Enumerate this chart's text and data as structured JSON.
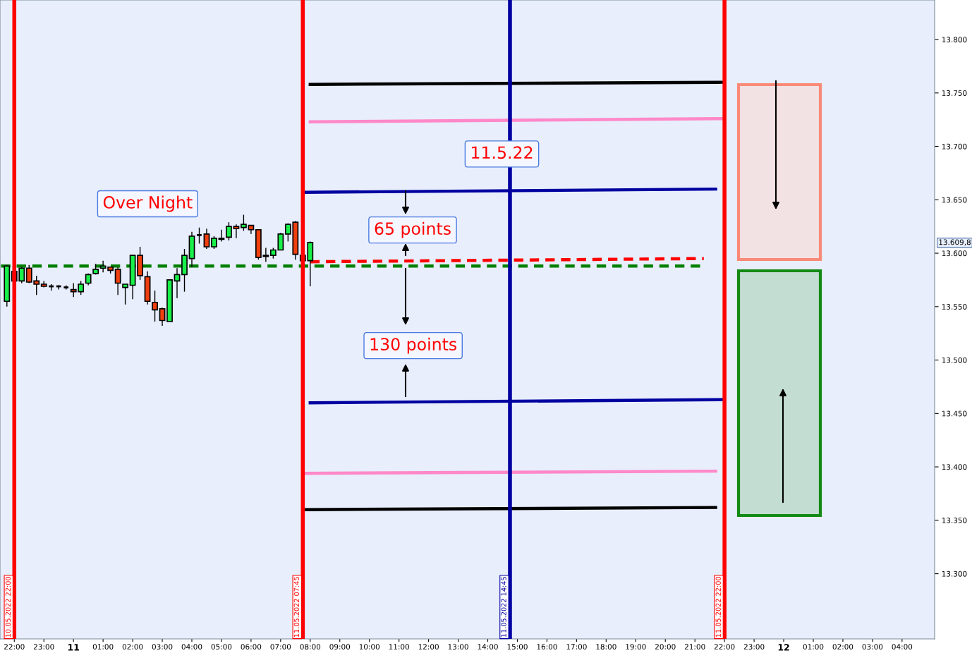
{
  "chart_data": {
    "type": "candlestick",
    "x": [
      "2022-05-10T21:45",
      "2022-05-10T22:00",
      "2022-05-10T22:15",
      "2022-05-10T22:30",
      "2022-05-10T22:45",
      "2022-05-10T23:00",
      "2022-05-10T23:15",
      "2022-05-10T23:30",
      "2022-05-10T23:45",
      "2022-05-11T00:00",
      "2022-05-11T00:15",
      "2022-05-11T00:30",
      "2022-05-11T00:45",
      "2022-05-11T01:00",
      "2022-05-11T01:15",
      "2022-05-11T01:30",
      "2022-05-11T01:45",
      "2022-05-11T02:00",
      "2022-05-11T02:15",
      "2022-05-11T02:30",
      "2022-05-11T02:45",
      "2022-05-11T03:00",
      "2022-05-11T03:15",
      "2022-05-11T03:30",
      "2022-05-11T03:45",
      "2022-05-11T04:00",
      "2022-05-11T04:15",
      "2022-05-11T04:30",
      "2022-05-11T04:45",
      "2022-05-11T05:00",
      "2022-05-11T05:15",
      "2022-05-11T05:30",
      "2022-05-11T05:45",
      "2022-05-11T06:00",
      "2022-05-11T06:15",
      "2022-05-11T06:30",
      "2022-05-11T06:45",
      "2022-05-11T07:00",
      "2022-05-11T07:15",
      "2022-05-11T07:30",
      "2022-05-11T07:45",
      "2022-05-11T08:00"
    ],
    "ohlc": [
      [
        13555,
        13589,
        13550,
        13588
      ],
      [
        13583,
        13585,
        13572,
        13574
      ],
      [
        13574,
        13587,
        13572,
        13586
      ],
      [
        13586,
        13589,
        13572,
        13573
      ],
      [
        13574,
        13579,
        13561,
        13571
      ],
      [
        13571,
        13574,
        13568,
        13569
      ],
      [
        13569,
        13571,
        13565,
        13569
      ],
      [
        13569,
        13570,
        13566,
        13569
      ],
      [
        13568,
        13570,
        13566,
        13568
      ],
      [
        13566,
        13572,
        13559,
        13564
      ],
      [
        13564,
        13574,
        13561,
        13571
      ],
      [
        13572,
        13581,
        13570,
        13580
      ],
      [
        13581,
        13590,
        13580,
        13585
      ],
      [
        13586,
        13593,
        13582,
        13588
      ],
      [
        13587,
        13587,
        13581,
        13584
      ],
      [
        13585,
        13587,
        13561,
        13572
      ],
      [
        13568,
        13571,
        13552,
        13571
      ],
      [
        13570,
        13598,
        13557,
        13598
      ],
      [
        13598,
        13606,
        13575,
        13579
      ],
      [
        13578,
        13583,
        13552,
        13555
      ],
      [
        13554,
        13565,
        13536,
        13547
      ],
      [
        13548,
        13549,
        13532,
        13537
      ],
      [
        13536,
        13575,
        13536,
        13575
      ],
      [
        13574,
        13586,
        13558,
        13580
      ],
      [
        13580,
        13604,
        13564,
        13598
      ],
      [
        13595,
        13620,
        13587,
        13616
      ],
      [
        13617,
        13624,
        13609,
        13617
      ],
      [
        13618,
        13623,
        13604,
        13606
      ],
      [
        13606,
        13616,
        13604,
        13614
      ],
      [
        13613,
        13622,
        13611,
        13614
      ],
      [
        13615,
        13629,
        13612,
        13625
      ],
      [
        13625,
        13627,
        13614,
        13623
      ],
      [
        13624,
        13636,
        13621,
        13627
      ],
      [
        13626,
        13626,
        13618,
        13622
      ],
      [
        13622,
        13622,
        13594,
        13596
      ],
      [
        13597,
        13605,
        13592,
        13598
      ],
      [
        13598,
        13605,
        13595,
        13603
      ],
      [
        13603,
        13619,
        13603,
        13618
      ],
      [
        13618,
        13628,
        13611,
        13627
      ],
      [
        13629,
        13630,
        13594,
        13599
      ],
      [
        13598,
        13599,
        13593,
        13593
      ],
      [
        13593,
        13611,
        13569,
        13610
      ]
    ],
    "series": [
      {
        "type": "line",
        "color": "#000000",
        "line_style": "solid",
        "x": [
          "2022-05-11T08:00",
          "2022-05-11T21:54"
        ],
        "values": [
          13758,
          13760
        ]
      },
      {
        "type": "line",
        "color": "#ff88c8",
        "line_style": "solid",
        "x": [
          "2022-05-11T08:00",
          "2022-05-11T21:54"
        ],
        "values": [
          13723,
          13726
        ]
      },
      {
        "type": "line",
        "color": "#0000a0",
        "line_style": "solid",
        "x": [
          "2022-05-11T07:46",
          "2022-05-11T21:42"
        ],
        "values": [
          13657,
          13660
        ]
      },
      {
        "type": "line",
        "color": "#ff0000",
        "line_style": "dashed",
        "x": [
          "2022-05-11T08:00",
          "2022-05-11T21:18"
        ],
        "values": [
          13592,
          13595
        ]
      },
      {
        "type": "line",
        "color": "#008000",
        "line_style": "dashed",
        "x": [
          "2022-05-10T21:33",
          "2022-05-11T21:18"
        ],
        "values": [
          13588,
          13588
        ]
      },
      {
        "type": "line",
        "color": "#0000a0",
        "line_style": "solid",
        "x": [
          "2022-05-11T08:00",
          "2022-05-11T21:54"
        ],
        "values": [
          13460,
          13463
        ]
      },
      {
        "type": "line",
        "color": "#ff88c8",
        "line_style": "solid",
        "x": [
          "2022-05-11T07:46",
          "2022-05-11T21:42"
        ],
        "values": [
          13394,
          13396
        ]
      },
      {
        "type": "line",
        "color": "#000000",
        "line_style": "solid",
        "x": [
          "2022-05-11T07:46",
          "2022-05-11T21:42"
        ],
        "values": [
          13360,
          13362
        ]
      }
    ],
    "xlim": [
      "2022-05-10T21:31",
      "2022-05-12T05:06"
    ],
    "ylim": [
      13239,
      13837
    ],
    "xticks": [
      {
        "value": "2022-05-10T22:00",
        "label": "22:00"
      },
      {
        "value": "2022-05-10T23:00",
        "label": "23:00"
      },
      {
        "value": "2022-05-11T00:00",
        "label": "11"
      },
      {
        "value": "2022-05-11T01:00",
        "label": "01:00"
      },
      {
        "value": "2022-05-11T02:00",
        "label": "02:00"
      },
      {
        "value": "2022-05-11T03:00",
        "label": "03:00"
      },
      {
        "value": "2022-05-11T04:00",
        "label": "04:00"
      },
      {
        "value": "2022-05-11T05:00",
        "label": "05:00"
      },
      {
        "value": "2022-05-11T06:00",
        "label": "06:00"
      },
      {
        "value": "2022-05-11T07:00",
        "label": "07:00"
      },
      {
        "value": "2022-05-11T08:00",
        "label": "08:00"
      },
      {
        "value": "2022-05-11T09:00",
        "label": "09:00"
      },
      {
        "value": "2022-05-11T10:00",
        "label": "10:00"
      },
      {
        "value": "2022-05-11T11:00",
        "label": "11:00"
      },
      {
        "value": "2022-05-11T12:00",
        "label": "12:00"
      },
      {
        "value": "2022-05-11T13:00",
        "label": "13:00"
      },
      {
        "value": "2022-05-11T14:00",
        "label": "14:00"
      },
      {
        "value": "2022-05-11T15:00",
        "label": "15:00"
      },
      {
        "value": "2022-05-11T16:00",
        "label": "16:00"
      },
      {
        "value": "2022-05-11T17:00",
        "label": "17:00"
      },
      {
        "value": "2022-05-11T18:00",
        "label": "18:00"
      },
      {
        "value": "2022-05-11T19:00",
        "label": "19:00"
      },
      {
        "value": "2022-05-11T20:00",
        "label": "20:00"
      },
      {
        "value": "2022-05-11T21:00",
        "label": "21:00"
      },
      {
        "value": "2022-05-11T22:00",
        "label": "22:00"
      },
      {
        "value": "2022-05-11T23:00",
        "label": "23:00"
      },
      {
        "value": "2022-05-12T00:00",
        "label": "12"
      },
      {
        "value": "2022-05-12T01:00",
        "label": "01:00"
      },
      {
        "value": "2022-05-12T02:00",
        "label": "02:00"
      },
      {
        "value": "2022-05-12T03:00",
        "label": "03:00"
      },
      {
        "value": "2022-05-12T04:00",
        "label": "04:00"
      }
    ],
    "yticks": [
      {
        "value": 13300,
        "label": "13.300"
      },
      {
        "value": 13350,
        "label": "13.350"
      },
      {
        "value": 13400,
        "label": "13.400"
      },
      {
        "value": 13450,
        "label": "13.450"
      },
      {
        "value": 13500,
        "label": "13.500"
      },
      {
        "value": 13550,
        "label": "13.550"
      },
      {
        "value": 13600,
        "label": "13.600"
      },
      {
        "value": 13650,
        "label": "13.650"
      },
      {
        "value": 13700,
        "label": "13.700"
      },
      {
        "value": 13750,
        "label": "13.750"
      },
      {
        "value": 13800,
        "label": "13.800"
      }
    ],
    "ref_lines": [
      {
        "axis": "x",
        "value": "2022-05-10T22:00",
        "label": "10.05.2022 22:00",
        "color": "#ff0000"
      },
      {
        "axis": "x",
        "value": "2022-05-11T07:45",
        "label": "11.05.2022 07:45",
        "color": "#ff0000"
      },
      {
        "axis": "x",
        "value": "2022-05-11T14:45",
        "label": "11.05.2022 14:45",
        "color": "#0000a0"
      },
      {
        "axis": "x",
        "value": "2022-05-11T22:00",
        "label": "11.05.2022 22:00",
        "color": "#ff0000"
      }
    ],
    "annotations": [
      "Over Night",
      "11.5.22",
      "65 points",
      "130 points",
      "13.609,8"
    ],
    "grid": false,
    "legend": false
  }
}
